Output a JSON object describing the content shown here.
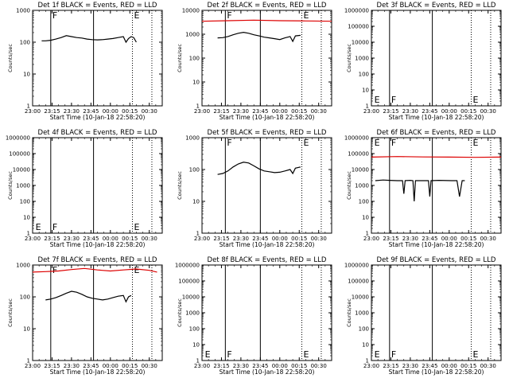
{
  "page": {
    "x_axis_label": "Start Time (10-Jan-18 22:58:20)",
    "y_axis_label": "Counts/sec",
    "x_tick_labels": [
      "23:00",
      "23:15",
      "23:30",
      "23:45",
      "00:00",
      "00:15",
      "00:30"
    ],
    "series_colors": {
      "events": "#000000",
      "lld": "#dd0000"
    }
  },
  "chart_data": [
    {
      "type": "line",
      "title": "Det 1f BLACK = Events, RED = LLD",
      "ylim": [
        1,
        1000
      ],
      "yscale": "log",
      "y_tick_labels": [
        "1",
        "10",
        "100",
        "1000"
      ],
      "x_ticks_min": [
        0,
        15,
        30,
        45,
        60,
        75,
        90
      ],
      "xlim": [
        0,
        100
      ],
      "vlines": [
        {
          "x": 14,
          "style": "solid"
        },
        {
          "x": 47,
          "style": "solid"
        },
        {
          "x": 77,
          "style": "dotted"
        },
        {
          "x": 92,
          "style": "dotted"
        }
      ],
      "markers": [
        {
          "text": "F",
          "x": 14
        },
        {
          "text": "E",
          "x": 77
        }
      ],
      "marker_at": "top",
      "series": [
        {
          "color": "events",
          "x": [
            7,
            10,
            14,
            18,
            22,
            26,
            30,
            34,
            38,
            42,
            46,
            50,
            54,
            58,
            62,
            66,
            70,
            72,
            74,
            76,
            78,
            80
          ],
          "y": [
            110,
            110,
            115,
            125,
            140,
            160,
            150,
            140,
            135,
            125,
            120,
            118,
            120,
            125,
            130,
            140,
            150,
            100,
            130,
            150,
            140,
            100
          ]
        }
      ]
    },
    {
      "type": "line",
      "title": "Det 2f BLACK = Events, RED = LLD",
      "ylim": [
        1,
        10000
      ],
      "yscale": "log",
      "y_tick_labels": [
        "1",
        "10",
        "100",
        "1000",
        "10000"
      ],
      "x_ticks_min": [
        0,
        15,
        30,
        45,
        60,
        75,
        90
      ],
      "xlim": [
        0,
        100
      ],
      "vlines": [
        {
          "x": 18,
          "style": "solid"
        },
        {
          "x": 45,
          "style": "solid"
        },
        {
          "x": 77,
          "style": "dotted"
        },
        {
          "x": 92,
          "style": "dotted"
        }
      ],
      "markers": [
        {
          "text": "F",
          "x": 18
        },
        {
          "text": "E",
          "x": 77
        }
      ],
      "marker_at": "top",
      "series": [
        {
          "color": "lld",
          "x": [
            0,
            20,
            40,
            60,
            80,
            100
          ],
          "y": [
            3500,
            3700,
            3900,
            3700,
            3600,
            3500
          ]
        },
        {
          "color": "events",
          "x": [
            12,
            16,
            20,
            24,
            28,
            32,
            36,
            40,
            44,
            48,
            52,
            56,
            60,
            64,
            68,
            70,
            72,
            76
          ],
          "y": [
            700,
            720,
            800,
            950,
            1100,
            1200,
            1100,
            950,
            850,
            750,
            700,
            650,
            600,
            700,
            800,
            500,
            850,
            900
          ]
        }
      ]
    },
    {
      "type": "line",
      "title": "Det 3f BLACK = Events, RED = LLD",
      "ylim": [
        1,
        1000000
      ],
      "yscale": "log",
      "y_tick_labels": [
        "1",
        "10",
        "100",
        "1000",
        "10000",
        "100000",
        "1000000"
      ],
      "x_ticks_min": [
        0,
        15,
        30,
        45,
        60,
        75,
        90
      ],
      "xlim": [
        0,
        100
      ],
      "vlines": [
        {
          "x": 14,
          "style": "solid"
        },
        {
          "x": 47,
          "style": "solid"
        },
        {
          "x": 77,
          "style": "dotted"
        },
        {
          "x": 92,
          "style": "dotted"
        }
      ],
      "markers": [
        {
          "text": "E",
          "x": 1
        },
        {
          "text": "F",
          "x": 14
        },
        {
          "text": "E",
          "x": 77
        }
      ],
      "marker_at": "bottom",
      "series": []
    },
    {
      "type": "line",
      "title": "Det 4f BLACK = Events, RED = LLD",
      "ylim": [
        1,
        1000000
      ],
      "yscale": "log",
      "y_tick_labels": [
        "1",
        "10",
        "100",
        "1000",
        "10000",
        "100000",
        "1000000"
      ],
      "x_ticks_min": [
        0,
        15,
        30,
        45,
        60,
        75,
        90
      ],
      "xlim": [
        0,
        100
      ],
      "vlines": [
        {
          "x": 14,
          "style": "solid"
        },
        {
          "x": 47,
          "style": "solid"
        },
        {
          "x": 77,
          "style": "dotted"
        },
        {
          "x": 92,
          "style": "dotted"
        }
      ],
      "markers": [
        {
          "text": "E",
          "x": 1
        },
        {
          "text": "F",
          "x": 14
        },
        {
          "text": "E",
          "x": 77
        }
      ],
      "marker_at": "bottom",
      "series": []
    },
    {
      "type": "line",
      "title": "Det 5f BLACK = Events, RED = LLD",
      "ylim": [
        1,
        1000
      ],
      "yscale": "log",
      "y_tick_labels": [
        "1",
        "10",
        "100",
        "1000"
      ],
      "x_ticks_min": [
        0,
        15,
        30,
        45,
        60,
        75,
        90
      ],
      "xlim": [
        0,
        100
      ],
      "vlines": [
        {
          "x": 18,
          "style": "solid"
        },
        {
          "x": 45,
          "style": "solid"
        },
        {
          "x": 77,
          "style": "dotted"
        },
        {
          "x": 92,
          "style": "dotted"
        }
      ],
      "markers": [
        {
          "text": "F",
          "x": 18
        },
        {
          "text": "E",
          "x": 77
        }
      ],
      "marker_at": "top",
      "series": [
        {
          "color": "events",
          "x": [
            12,
            16,
            20,
            24,
            28,
            32,
            36,
            40,
            44,
            48,
            52,
            56,
            60,
            64,
            68,
            70,
            72,
            76
          ],
          "y": [
            70,
            75,
            90,
            120,
            150,
            170,
            160,
            130,
            105,
            90,
            85,
            80,
            82,
            90,
            100,
            75,
            110,
            120
          ]
        }
      ]
    },
    {
      "type": "line",
      "title": "Det 6f BLACK = Events, RED = LLD",
      "ylim": [
        1,
        1000000
      ],
      "yscale": "log",
      "y_tick_labels": [
        "1",
        "10",
        "100",
        "1000",
        "10000",
        "100000",
        "1000000"
      ],
      "x_ticks_min": [
        0,
        15,
        30,
        45,
        60,
        75,
        90
      ],
      "xlim": [
        0,
        100
      ],
      "vlines": [
        {
          "x": 14,
          "style": "solid"
        },
        {
          "x": 47,
          "style": "solid"
        },
        {
          "x": 77,
          "style": "dotted"
        },
        {
          "x": 92,
          "style": "dotted"
        }
      ],
      "markers": [
        {
          "text": "E",
          "x": 1
        },
        {
          "text": "F",
          "x": 14
        },
        {
          "text": "E",
          "x": 77
        }
      ],
      "marker_at": "top",
      "series": [
        {
          "color": "lld",
          "x": [
            0,
            20,
            40,
            60,
            80,
            100
          ],
          "y": [
            60000,
            65000,
            62000,
            60000,
            58000,
            60000
          ]
        },
        {
          "color": "events",
          "x": [
            3,
            9,
            14,
            20,
            24,
            25,
            26,
            30,
            32,
            33,
            34,
            36,
            38,
            42,
            44,
            45,
            46,
            52,
            62,
            66,
            68,
            70,
            72
          ],
          "y": [
            2000,
            2200,
            2100,
            2000,
            2000,
            300,
            2000,
            2100,
            2000,
            100,
            2000,
            2000,
            2000,
            2000,
            2000,
            200,
            2000,
            2100,
            2000,
            2000,
            200,
            2000,
            2000
          ]
        }
      ]
    },
    {
      "type": "line",
      "title": "Det 7f BLACK = Events, RED = LLD",
      "ylim": [
        1,
        1000
      ],
      "yscale": "log",
      "y_tick_labels": [
        "1",
        "10",
        "100",
        "1000"
      ],
      "x_ticks_min": [
        0,
        15,
        30,
        45,
        60,
        75,
        90
      ],
      "xlim": [
        0,
        100
      ],
      "vlines": [
        {
          "x": 14,
          "style": "solid"
        },
        {
          "x": 47,
          "style": "solid"
        },
        {
          "x": 77,
          "style": "dotted"
        },
        {
          "x": 92,
          "style": "dotted"
        }
      ],
      "markers": [
        {
          "text": "F",
          "x": 14
        },
        {
          "text": "E",
          "x": 77
        }
      ],
      "marker_at": "top",
      "series": [
        {
          "color": "lld",
          "x": [
            0,
            10,
            20,
            30,
            40,
            50,
            60,
            70,
            80,
            90,
            96
          ],
          "y": [
            600,
            620,
            650,
            720,
            780,
            700,
            650,
            700,
            750,
            680,
            600
          ]
        },
        {
          "color": "events",
          "x": [
            10,
            14,
            18,
            22,
            26,
            30,
            34,
            38,
            42,
            46,
            50,
            54,
            58,
            62,
            66,
            70,
            72,
            74,
            76
          ],
          "y": [
            80,
            85,
            95,
            110,
            130,
            150,
            140,
            120,
            100,
            90,
            85,
            80,
            85,
            95,
            105,
            110,
            70,
            100,
            110
          ]
        }
      ]
    },
    {
      "type": "line",
      "title": "Det 8f BLACK = Events, RED = LLD",
      "ylim": [
        1,
        1000000
      ],
      "yscale": "log",
      "y_tick_labels": [
        "1",
        "10",
        "100",
        "1000",
        "10000",
        "100000",
        "1000000"
      ],
      "x_ticks_min": [
        0,
        15,
        30,
        45,
        60,
        75,
        90
      ],
      "xlim": [
        0,
        100
      ],
      "vlines": [
        {
          "x": 18,
          "style": "solid"
        },
        {
          "x": 45,
          "style": "solid"
        },
        {
          "x": 77,
          "style": "dotted"
        },
        {
          "x": 92,
          "style": "dotted"
        }
      ],
      "markers": [
        {
          "text": "E",
          "x": 1
        },
        {
          "text": "F",
          "x": 18
        },
        {
          "text": "E",
          "x": 77
        }
      ],
      "marker_at": "bottom",
      "series": []
    },
    {
      "type": "line",
      "title": "Det 9f BLACK = Events, RED = LLD",
      "ylim": [
        1,
        1000000
      ],
      "yscale": "log",
      "y_tick_labels": [
        "1",
        "10",
        "100",
        "1000",
        "10000",
        "100000",
        "1000000"
      ],
      "x_ticks_min": [
        0,
        15,
        30,
        45,
        60,
        75,
        90
      ],
      "xlim": [
        0,
        100
      ],
      "vlines": [
        {
          "x": 14,
          "style": "solid"
        },
        {
          "x": 47,
          "style": "solid"
        },
        {
          "x": 77,
          "style": "dotted"
        },
        {
          "x": 92,
          "style": "dotted"
        }
      ],
      "markers": [
        {
          "text": "E",
          "x": 1
        },
        {
          "text": "F",
          "x": 14
        },
        {
          "text": "E",
          "x": 77
        }
      ],
      "marker_at": "bottom",
      "series": []
    }
  ]
}
